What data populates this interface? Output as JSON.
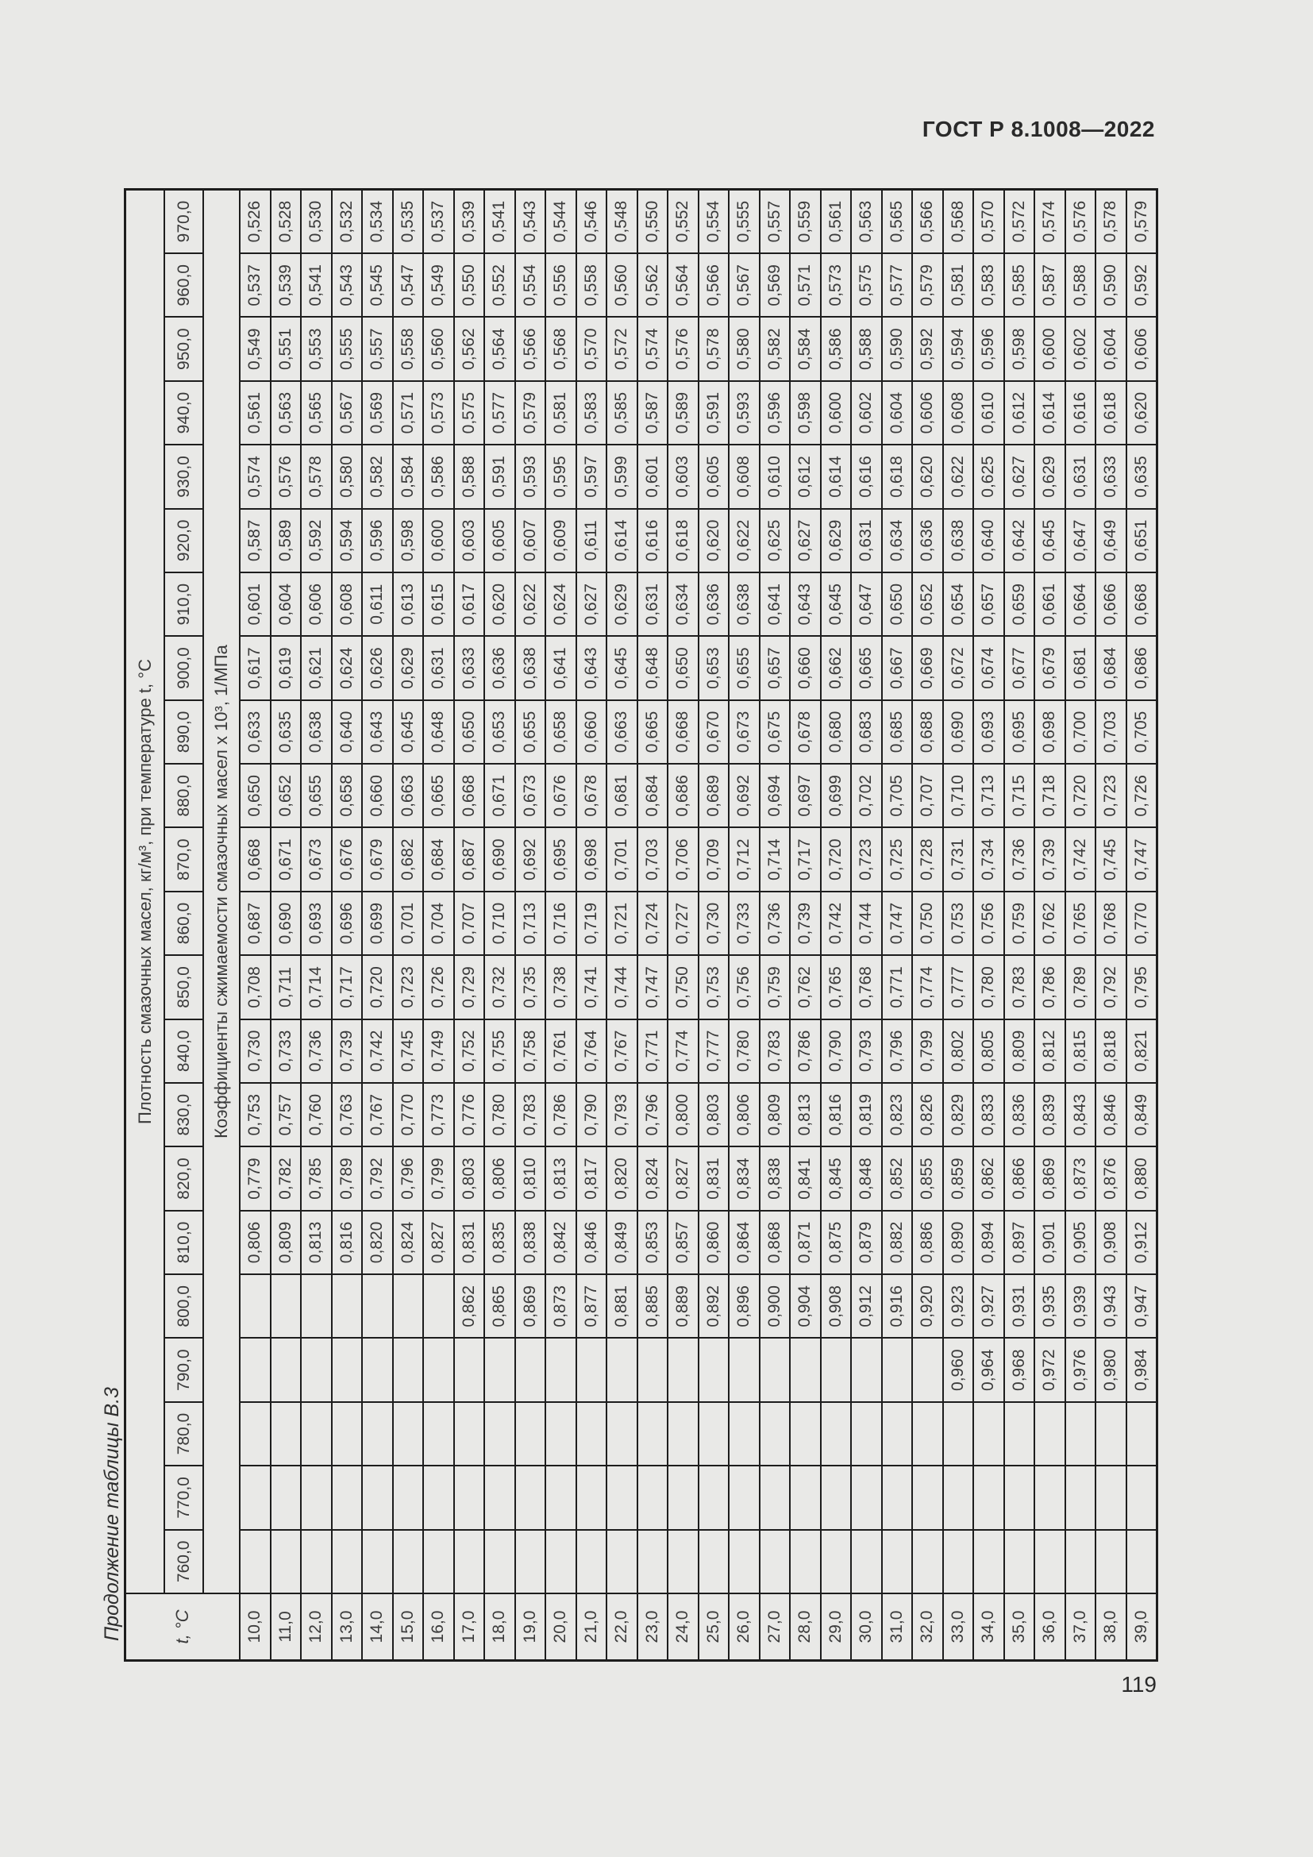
{
  "page": {
    "standard_ref": "ГОСТ Р 8.1008—2022",
    "page_number": "119",
    "table_caption": "Продолжение таблицы В.3"
  },
  "table": {
    "stub_header": "t, °C",
    "density_header": "Плотность смазочных масел, кг/м³, при температуре t, °C",
    "subheader": "Коэффициенты сжимаемости смазочных масел х 10³, 1/МПа",
    "density_columns": [
      "760,0",
      "770,0",
      "780,0",
      "790,0",
      "800,0",
      "810,0",
      "820,0",
      "830,0",
      "840,0",
      "850,0",
      "860,0",
      "870,0",
      "880,0",
      "890,0",
      "900,0",
      "910,0",
      "920,0",
      "930,0",
      "940,0",
      "950,0",
      "960,0",
      "970,0"
    ],
    "rows": [
      {
        "t": "10,0",
        "values": [
          "",
          "",
          "",
          "",
          "",
          "0,806",
          "0,779",
          "0,753",
          "0,730",
          "0,708",
          "0,687",
          "0,668",
          "0,650",
          "0,633",
          "0,617",
          "0,601",
          "0,587",
          "0,574",
          "0,561",
          "0,549",
          "0,537",
          "0,526"
        ]
      },
      {
        "t": "11,0",
        "values": [
          "",
          "",
          "",
          "",
          "",
          "0,809",
          "0,782",
          "0,757",
          "0,733",
          "0,711",
          "0,690",
          "0,671",
          "0,652",
          "0,635",
          "0,619",
          "0,604",
          "0,589",
          "0,576",
          "0,563",
          "0,551",
          "0,539",
          "0,528"
        ]
      },
      {
        "t": "12,0",
        "values": [
          "",
          "",
          "",
          "",
          "",
          "0,813",
          "0,785",
          "0,760",
          "0,736",
          "0,714",
          "0,693",
          "0,673",
          "0,655",
          "0,638",
          "0,621",
          "0,606",
          "0,592",
          "0,578",
          "0,565",
          "0,553",
          "0,541",
          "0,530"
        ]
      },
      {
        "t": "13,0",
        "values": [
          "",
          "",
          "",
          "",
          "",
          "0,816",
          "0,789",
          "0,763",
          "0,739",
          "0,717",
          "0,696",
          "0,676",
          "0,658",
          "0,640",
          "0,624",
          "0,608",
          "0,594",
          "0,580",
          "0,567",
          "0,555",
          "0,543",
          "0,532"
        ]
      },
      {
        "t": "14,0",
        "values": [
          "",
          "",
          "",
          "",
          "",
          "0,820",
          "0,792",
          "0,767",
          "0,742",
          "0,720",
          "0,699",
          "0,679",
          "0,660",
          "0,643",
          "0,626",
          "0,611",
          "0,596",
          "0,582",
          "0,569",
          "0,557",
          "0,545",
          "0,534"
        ]
      },
      {
        "t": "15,0",
        "values": [
          "",
          "",
          "",
          "",
          "",
          "0,824",
          "0,796",
          "0,770",
          "0,745",
          "0,723",
          "0,701",
          "0,682",
          "0,663",
          "0,645",
          "0,629",
          "0,613",
          "0,598",
          "0,584",
          "0,571",
          "0,558",
          "0,547",
          "0,535"
        ]
      },
      {
        "t": "16,0",
        "values": [
          "",
          "",
          "",
          "",
          "",
          "0,827",
          "0,799",
          "0,773",
          "0,749",
          "0,726",
          "0,704",
          "0,684",
          "0,665",
          "0,648",
          "0,631",
          "0,615",
          "0,600",
          "0,586",
          "0,573",
          "0,560",
          "0,549",
          "0,537"
        ]
      },
      {
        "t": "17,0",
        "values": [
          "",
          "",
          "",
          "",
          "0,862",
          "0,831",
          "0,803",
          "0,776",
          "0,752",
          "0,729",
          "0,707",
          "0,687",
          "0,668",
          "0,650",
          "0,633",
          "0,617",
          "0,603",
          "0,588",
          "0,575",
          "0,562",
          "0,550",
          "0,539"
        ]
      },
      {
        "t": "18,0",
        "values": [
          "",
          "",
          "",
          "",
          "0,865",
          "0,835",
          "0,806",
          "0,780",
          "0,755",
          "0,732",
          "0,710",
          "0,690",
          "0,671",
          "0,653",
          "0,636",
          "0,620",
          "0,605",
          "0,591",
          "0,577",
          "0,564",
          "0,552",
          "0,541"
        ]
      },
      {
        "t": "19,0",
        "values": [
          "",
          "",
          "",
          "",
          "0,869",
          "0,838",
          "0,810",
          "0,783",
          "0,758",
          "0,735",
          "0,713",
          "0,692",
          "0,673",
          "0,655",
          "0,638",
          "0,622",
          "0,607",
          "0,593",
          "0,579",
          "0,566",
          "0,554",
          "0,543"
        ]
      },
      {
        "t": "20,0",
        "values": [
          "",
          "",
          "",
          "",
          "0,873",
          "0,842",
          "0,813",
          "0,786",
          "0,761",
          "0,738",
          "0,716",
          "0,695",
          "0,676",
          "0,658",
          "0,641",
          "0,624",
          "0,609",
          "0,595",
          "0,581",
          "0,568",
          "0,556",
          "0,544"
        ]
      },
      {
        "t": "21,0",
        "values": [
          "",
          "",
          "",
          "",
          "0,877",
          "0,846",
          "0,817",
          "0,790",
          "0,764",
          "0,741",
          "0,719",
          "0,698",
          "0,678",
          "0,660",
          "0,643",
          "0,627",
          "0,611",
          "0,597",
          "0,583",
          "0,570",
          "0,558",
          "0,546"
        ]
      },
      {
        "t": "22,0",
        "values": [
          "",
          "",
          "",
          "",
          "0,881",
          "0,849",
          "0,820",
          "0,793",
          "0,767",
          "0,744",
          "0,721",
          "0,701",
          "0,681",
          "0,663",
          "0,645",
          "0,629",
          "0,614",
          "0,599",
          "0,585",
          "0,572",
          "0,560",
          "0,548"
        ]
      },
      {
        "t": "23,0",
        "values": [
          "",
          "",
          "",
          "",
          "0,885",
          "0,853",
          "0,824",
          "0,796",
          "0,771",
          "0,747",
          "0,724",
          "0,703",
          "0,684",
          "0,665",
          "0,648",
          "0,631",
          "0,616",
          "0,601",
          "0,587",
          "0,574",
          "0,562",
          "0,550"
        ]
      },
      {
        "t": "24,0",
        "values": [
          "",
          "",
          "",
          "",
          "0,889",
          "0,857",
          "0,827",
          "0,800",
          "0,774",
          "0,750",
          "0,727",
          "0,706",
          "0,686",
          "0,668",
          "0,650",
          "0,634",
          "0,618",
          "0,603",
          "0,589",
          "0,576",
          "0,564",
          "0,552"
        ]
      },
      {
        "t": "25,0",
        "values": [
          "",
          "",
          "",
          "",
          "0,892",
          "0,860",
          "0,831",
          "0,803",
          "0,777",
          "0,753",
          "0,730",
          "0,709",
          "0,689",
          "0,670",
          "0,653",
          "0,636",
          "0,620",
          "0,605",
          "0,591",
          "0,578",
          "0,566",
          "0,554"
        ]
      },
      {
        "t": "26,0",
        "values": [
          "",
          "",
          "",
          "",
          "0,896",
          "0,864",
          "0,834",
          "0,806",
          "0,780",
          "0,756",
          "0,733",
          "0,712",
          "0,692",
          "0,673",
          "0,655",
          "0,638",
          "0,622",
          "0,608",
          "0,593",
          "0,580",
          "0,567",
          "0,555"
        ]
      },
      {
        "t": "27,0",
        "values": [
          "",
          "",
          "",
          "",
          "0,900",
          "0,868",
          "0,838",
          "0,809",
          "0,783",
          "0,759",
          "0,736",
          "0,714",
          "0,694",
          "0,675",
          "0,657",
          "0,641",
          "0,625",
          "0,610",
          "0,596",
          "0,582",
          "0,569",
          "0,557"
        ]
      },
      {
        "t": "28,0",
        "values": [
          "",
          "",
          "",
          "",
          "0,904",
          "0,871",
          "0,841",
          "0,813",
          "0,786",
          "0,762",
          "0,739",
          "0,717",
          "0,697",
          "0,678",
          "0,660",
          "0,643",
          "0,627",
          "0,612",
          "0,598",
          "0,584",
          "0,571",
          "0,559"
        ]
      },
      {
        "t": "29,0",
        "values": [
          "",
          "",
          "",
          "",
          "0,908",
          "0,875",
          "0,845",
          "0,816",
          "0,790",
          "0,765",
          "0,742",
          "0,720",
          "0,699",
          "0,680",
          "0,662",
          "0,645",
          "0,629",
          "0,614",
          "0,600",
          "0,586",
          "0,573",
          "0,561"
        ]
      },
      {
        "t": "30,0",
        "values": [
          "",
          "",
          "",
          "",
          "0,912",
          "0,879",
          "0,848",
          "0,819",
          "0,793",
          "0,768",
          "0,744",
          "0,723",
          "0,702",
          "0,683",
          "0,665",
          "0,647",
          "0,631",
          "0,616",
          "0,602",
          "0,588",
          "0,575",
          "0,563"
        ]
      },
      {
        "t": "31,0",
        "values": [
          "",
          "",
          "",
          "",
          "0,916",
          "0,882",
          "0,852",
          "0,823",
          "0,796",
          "0,771",
          "0,747",
          "0,725",
          "0,705",
          "0,685",
          "0,667",
          "0,650",
          "0,634",
          "0,618",
          "0,604",
          "0,590",
          "0,577",
          "0,565"
        ]
      },
      {
        "t": "32,0",
        "values": [
          "",
          "",
          "",
          "",
          "0,920",
          "0,886",
          "0,855",
          "0,826",
          "0,799",
          "0,774",
          "0,750",
          "0,728",
          "0,707",
          "0,688",
          "0,669",
          "0,652",
          "0,636",
          "0,620",
          "0,606",
          "0,592",
          "0,579",
          "0,566"
        ]
      },
      {
        "t": "33,0",
        "values": [
          "",
          "",
          "",
          "0,960",
          "0,923",
          "0,890",
          "0,859",
          "0,829",
          "0,802",
          "0,777",
          "0,753",
          "0,731",
          "0,710",
          "0,690",
          "0,672",
          "0,654",
          "0,638",
          "0,622",
          "0,608",
          "0,594",
          "0,581",
          "0,568"
        ]
      },
      {
        "t": "34,0",
        "values": [
          "",
          "",
          "",
          "0,964",
          "0,927",
          "0,894",
          "0,862",
          "0,833",
          "0,805",
          "0,780",
          "0,756",
          "0,734",
          "0,713",
          "0,693",
          "0,674",
          "0,657",
          "0,640",
          "0,625",
          "0,610",
          "0,596",
          "0,583",
          "0,570"
        ]
      },
      {
        "t": "35,0",
        "values": [
          "",
          "",
          "",
          "0,968",
          "0,931",
          "0,897",
          "0,866",
          "0,836",
          "0,809",
          "0,783",
          "0,759",
          "0,736",
          "0,715",
          "0,695",
          "0,677",
          "0,659",
          "0,642",
          "0,627",
          "0,612",
          "0,598",
          "0,585",
          "0,572"
        ]
      },
      {
        "t": "36,0",
        "values": [
          "",
          "",
          "",
          "0,972",
          "0,935",
          "0,901",
          "0,869",
          "0,839",
          "0,812",
          "0,786",
          "0,762",
          "0,739",
          "0,718",
          "0,698",
          "0,679",
          "0,661",
          "0,645",
          "0,629",
          "0,614",
          "0,600",
          "0,587",
          "0,574"
        ]
      },
      {
        "t": "37,0",
        "values": [
          "",
          "",
          "",
          "0,976",
          "0,939",
          "0,905",
          "0,873",
          "0,843",
          "0,815",
          "0,789",
          "0,765",
          "0,742",
          "0,720",
          "0,700",
          "0,681",
          "0,664",
          "0,647",
          "0,631",
          "0,616",
          "0,602",
          "0,588",
          "0,576"
        ]
      },
      {
        "t": "38,0",
        "values": [
          "",
          "",
          "",
          "0,980",
          "0,943",
          "0,908",
          "0,876",
          "0,846",
          "0,818",
          "0,792",
          "0,768",
          "0,745",
          "0,723",
          "0,703",
          "0,684",
          "0,666",
          "0,649",
          "0,633",
          "0,618",
          "0,604",
          "0,590",
          "0,578"
        ]
      },
      {
        "t": "39,0",
        "values": [
          "",
          "",
          "",
          "0,984",
          "0,947",
          "0,912",
          "0,880",
          "0,849",
          "0,821",
          "0,795",
          "0,770",
          "0,747",
          "0,726",
          "0,705",
          "0,686",
          "0,668",
          "0,651",
          "0,635",
          "0,620",
          "0,606",
          "0,592",
          "0,579"
        ]
      }
    ]
  }
}
